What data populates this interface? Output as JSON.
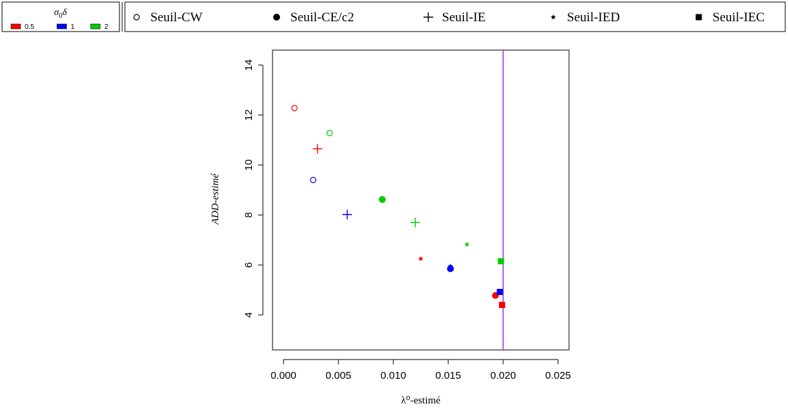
{
  "chart_data": {
    "type": "scatter",
    "title": "",
    "xlabel": "λ⁰-estimé",
    "ylabel": "ADD-estimé",
    "xlim": [
      -0.001,
      0.026
    ],
    "ylim": [
      2.6,
      14.6
    ],
    "x_ticks": [
      "0.000",
      "0.005",
      "0.010",
      "0.015",
      "0.020",
      "0.025"
    ],
    "x_tick_values": [
      0,
      0.005,
      0.01,
      0.015,
      0.02,
      0.025
    ],
    "y_ticks": [
      "4",
      "6",
      "8",
      "10",
      "12",
      "14"
    ],
    "y_tick_values": [
      4,
      6,
      8,
      10,
      12,
      14
    ],
    "vline": {
      "x": 0.02,
      "color": "#9b30ff"
    },
    "color_legend": {
      "title_symbol": "σ",
      "title_sub": "0",
      "title_tail": "δ",
      "entries": [
        {
          "label": "0.5",
          "color": "#ff0000"
        },
        {
          "label": "1",
          "color": "#0000ff"
        },
        {
          "label": "2",
          "color": "#00cc00"
        }
      ]
    },
    "shape_legend": [
      {
        "name": "Seuil-CW",
        "marker": "open-circle"
      },
      {
        "name": "Seuil-CE/c2",
        "marker": "filled-circle"
      },
      {
        "name": "Seuil-IE",
        "marker": "plus"
      },
      {
        "name": "Seuil-IED",
        "marker": "star"
      },
      {
        "name": "Seuil-IEC",
        "marker": "filled-square"
      }
    ],
    "series": [
      {
        "name": "Seuil-CW",
        "marker": "open-circle",
        "points": [
          {
            "x": 0.001,
            "y": 12.28,
            "color": "#ff0000"
          },
          {
            "x": 0.0027,
            "y": 9.4,
            "color": "#0000ff"
          },
          {
            "x": 0.0042,
            "y": 11.28,
            "color": "#00cc00"
          }
        ]
      },
      {
        "name": "Seuil-CE/c2",
        "marker": "filled-circle",
        "points": [
          {
            "x": 0.0193,
            "y": 4.78,
            "color": "#ff0000"
          },
          {
            "x": 0.0152,
            "y": 5.85,
            "color": "#0000ff"
          },
          {
            "x": 0.009,
            "y": 8.62,
            "color": "#00cc00"
          }
        ]
      },
      {
        "name": "Seuil-IE",
        "marker": "plus",
        "points": [
          {
            "x": 0.0031,
            "y": 10.65,
            "color": "#ff0000"
          },
          {
            "x": 0.0058,
            "y": 8.02,
            "color": "#0000ff"
          },
          {
            "x": 0.012,
            "y": 7.7,
            "color": "#00cc00"
          }
        ]
      },
      {
        "name": "Seuil-IED",
        "marker": "star",
        "points": [
          {
            "x": 0.0125,
            "y": 6.25,
            "color": "#ff0000"
          },
          {
            "x": 0.0152,
            "y": 5.95,
            "color": "#0000ff"
          },
          {
            "x": 0.0167,
            "y": 6.82,
            "color": "#00cc00"
          }
        ]
      },
      {
        "name": "Seuil-IEC",
        "marker": "filled-square",
        "points": [
          {
            "x": 0.0199,
            "y": 4.4,
            "color": "#ff0000"
          },
          {
            "x": 0.0197,
            "y": 4.92,
            "color": "#0000ff"
          },
          {
            "x": 0.0198,
            "y": 6.15,
            "color": "#00cc00"
          }
        ]
      }
    ]
  }
}
